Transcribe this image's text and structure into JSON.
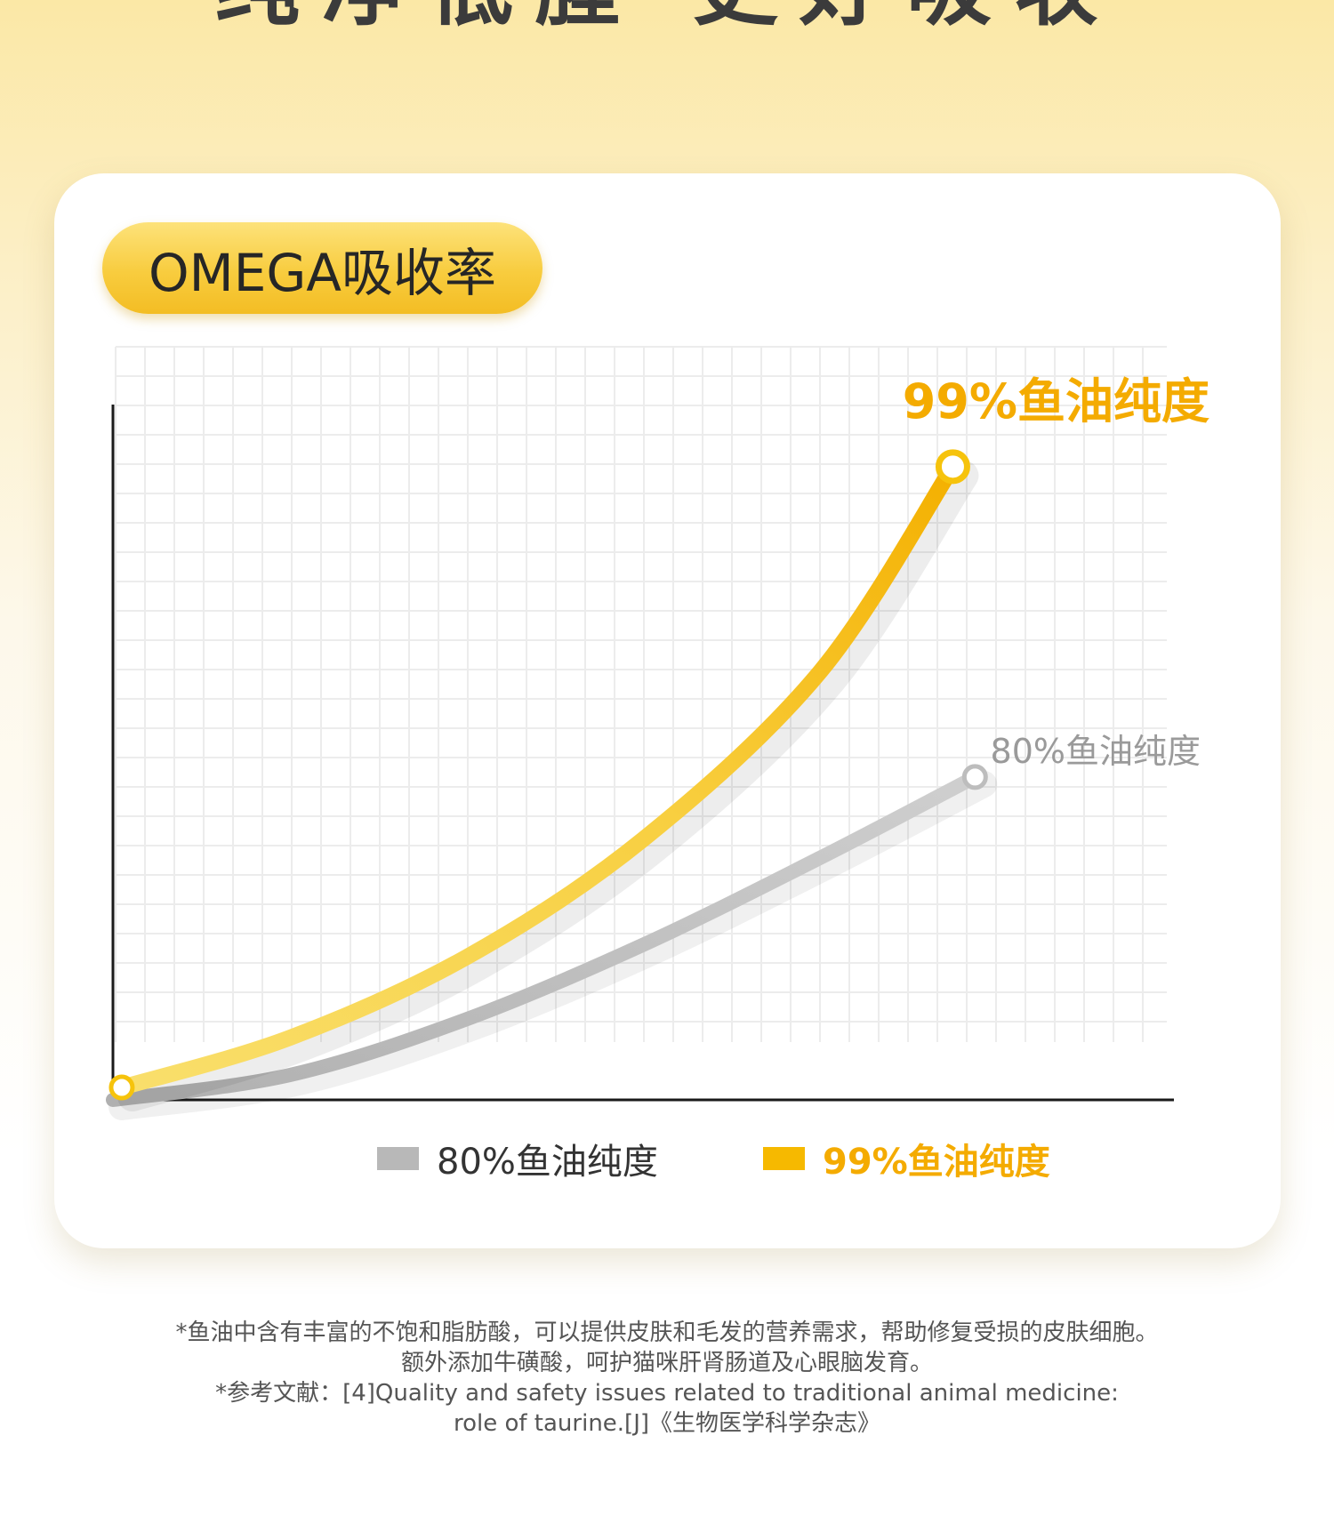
{
  "hero_title": "纯净低腥 更好吸收",
  "badge_label": "OMEGA吸收率",
  "chart_data": {
    "type": "line",
    "title": "OMEGA吸收率",
    "xlabel": "",
    "ylabel": "",
    "xlim": [
      0,
      10
    ],
    "ylim": [
      0,
      10
    ],
    "grid": true,
    "legend": "bottom-center",
    "series": [
      {
        "name": "80%鱼油纯度",
        "color": "#c4c4c4",
        "x": [
          0,
          2,
          4,
          6,
          8,
          9.75
        ],
        "y": [
          0,
          0.4,
          1.3,
          2.5,
          3.9,
          5.2
        ]
      },
      {
        "name": "99%鱼油纯度",
        "color": "#f6b900",
        "x": [
          0.1,
          2,
          4,
          6,
          8,
          9.5
        ],
        "y": [
          0.2,
          1,
          2.3,
          4.2,
          6.9,
          10.2
        ]
      }
    ]
  },
  "annotations": {
    "gold_label": "99%鱼油纯度",
    "gray_label": "80%鱼油纯度"
  },
  "legend": {
    "gray": "80%鱼油纯度",
    "gold": "99%鱼油纯度"
  },
  "footnote": {
    "line1": "*鱼油中含有丰富的不饱和脂肪酸，可以提供皮肤和毛发的营养需求，帮助修复受损的皮肤细胞。",
    "line2": "额外添加牛磺酸，呵护猫咪肝肾肠道及心眼脑发育。",
    "line3": "*参考文献：[4]Quality and safety issues related to traditional animal medicine:",
    "line4": "role of taurine.[J]《生物医学科学杂志》"
  }
}
